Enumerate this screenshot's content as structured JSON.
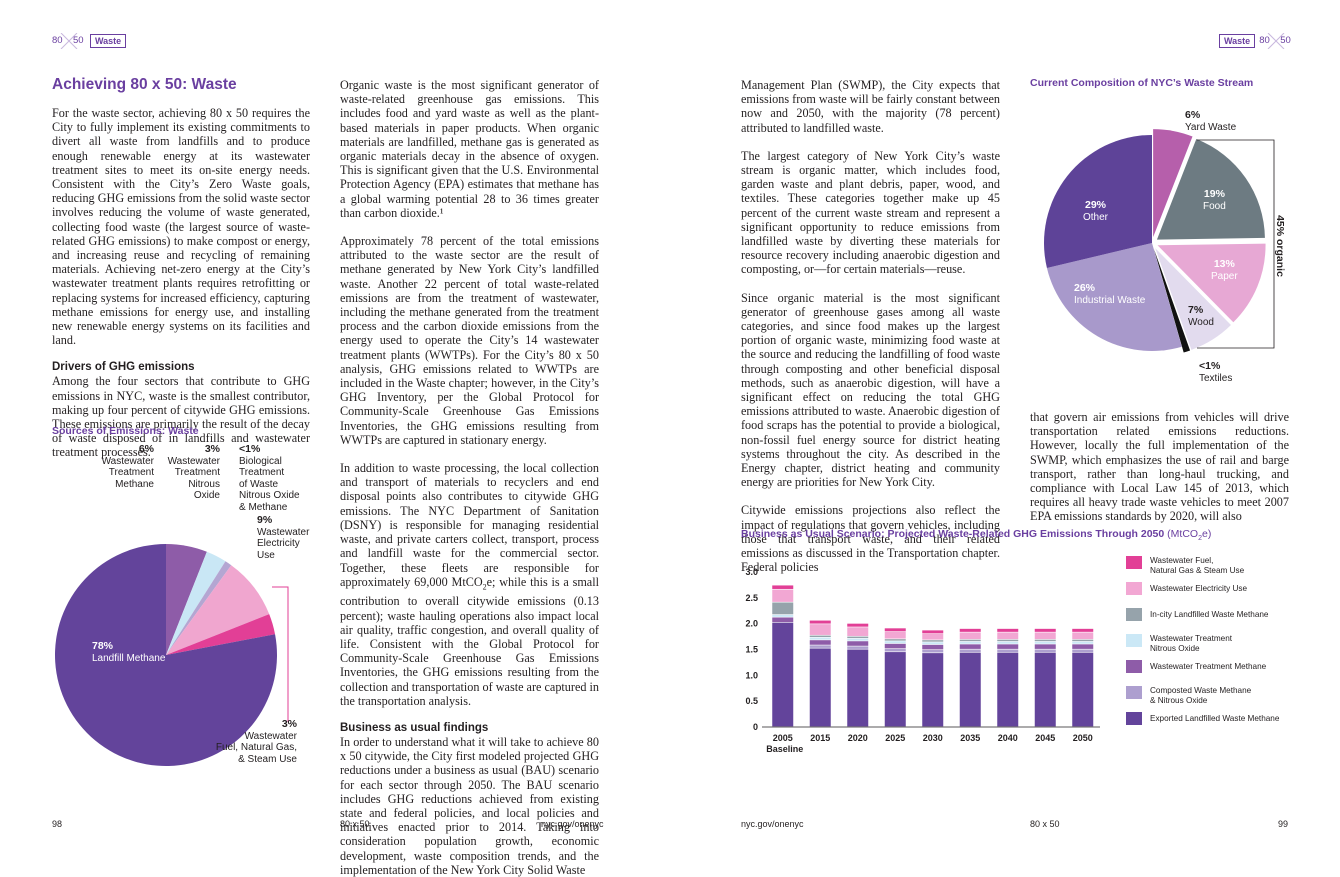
{
  "header": {
    "logo_left_a": "80",
    "logo_left_b": "50",
    "section_tag_left": "Waste",
    "section_tag_right": "Waste",
    "logo_right_a": "80",
    "logo_right_b": "50"
  },
  "left_page": {
    "title": "Achieving 80 x 50: Waste",
    "intro": "For the waste sector, achieving 80 x 50 requires the City to fully implement its existing commitments to divert all waste from landfills and to produce enough renewable energy at its wastewater treatment sites to meet its on-site energy needs. Consistent with the City’s Zero Waste goals, reducing GHG emissions from the solid waste sector involves reducing the volume of waste generated, collecting food waste (the largest source of waste-related GHG emissions) to make compost or energy, and increasing reuse and recycling of remaining materials. Achieving net-zero energy at the City’s wastewater treatment plants requires retrofitting or replacing systems for increased efficiency, capturing methane emissions for energy use, and installing new renewable energy systems on its facilities and land.",
    "drivers_heading": "Drivers of GHG emissions",
    "drivers_text": "Among the four sectors that contribute to GHG emissions in NYC, waste is the smallest contributor, making up four percent of citywide GHG emissions. These emissions are primarily the result of the decay of waste disposed of in landfills and wastewater treatment processes.",
    "col2_p1": "Organic waste is the most significant generator of waste-related greenhouse gas emissions. This includes food and yard waste as well as the plant-based materials in paper products. When organic materials are landfilled, methane gas is generated as organic materials decay in the absence of oxygen. This is significant given that the U.S. Environmental Protection Agency (EPA) estimates that methane has a global warming potential 28 to 36 times greater than carbon dioxide.¹",
    "col2_p2": "Approximately 78 percent of the total emissions attributed to the waste sector are the result of methane generated by New York City’s landfilled waste. Another 22 percent of total waste-related emissions are from the treatment of wastewater, including the methane generated from the treatment process and the carbon dioxide emissions from the energy used to operate the City’s 14 wastewater treatment plants (WWTPs). For the City’s 80 x 50 analysis, GHG emissions related to WWTPs are included in the Waste chapter; however, in the City’s GHG Inventory, per the Global Protocol for Community-Scale Greenhouse Gas Emissions Inventories, the GHG emissions resulting from WWTPs are captured in stationary energy.",
    "col2_p3a": "In addition to waste processing, the local collection and transport of materials to recyclers and end disposal points also contributes to citywide GHG emissions. The NYC Department of Sanitation (DSNY) is responsible for managing residential waste, and private carters collect, transport, process and landfill waste for the commercial sector. Together, these fleets are responsible for approximately 69,000 MtCO",
    "col2_p3_sub": "2",
    "col2_p3b": "e; while this is a small contribution to overall citywide emissions (0.13 percent); waste hauling operations also impact local air quality, traffic congestion, and overall quality of life. Consistent with the Global Protocol for Community-Scale Greenhouse Gas Emissions Inventories, the GHG emissions resulting from the collection and transportation of waste are captured in the transportation analysis.",
    "bau_heading": "Business as usual findings",
    "bau_text": "In order to understand what it will take to achieve 80 x 50 citywide, the City first modeled projected GHG reductions under a business as usual (BAU) scenario for each sector through 2050. The BAU scenario includes GHG reductions achieved from existing state and federal policies, and local policies and initiatives enacted prior to 2014. Taking into consideration population growth, economic development, waste composition trends, and the implementation of the New York City Solid Waste",
    "footer_page": "98",
    "footer_mid": "80 x 50",
    "footer_url": "nyc.gov/onenyc"
  },
  "right_page": {
    "col1_p1": "Management Plan (SWMP), the City expects that emissions from waste will be fairly constant between now and 2050, with the majority (78 percent) attributed to landfilled waste.",
    "col1_p2": "The largest category of New York City’s waste stream is organic matter, which includes food, garden waste and plant debris, paper, wood, and textiles. These categories together make up 45 percent of the current waste stream and represent a significant opportunity to reduce emissions from landfilled waste by diverting these materials for resource recovery including anaerobic digestion and composting, or—for certain materials—reuse.",
    "col1_p3": "Since organic material is the most significant generator of greenhouse gases among all waste categories, and since food makes up the largest portion of organic waste, minimizing food waste at the source and reducing the landfilling of food waste through composting and other beneficial disposal methods, such as anaerobic digestion, will have a significant effect on reducing the total GHG emissions attributed to waste. Anaerobic digestion of food scraps has the potential to provide a biological, non-fossil fuel energy source for district heating systems throughout the city. As described in the Energy chapter, district heating and community energy are priorities for New York City.",
    "col1_p4": "Citywide emissions projections also reflect the impact of regulations that govern vehicles, including those that transport waste, and their related emissions as discussed in the Transportation chapter. Federal policies",
    "col2_p1": "that govern air emissions from vehicles will drive transportation related emissions reductions. However, locally the full implementation of the SWMP, which emphasizes the use of rail and barge transport, rather than long-haul trucking, and compliance with Local Law 145 of 2013, which requires all heavy trade waste vehicles to meet 2007 EPA emissions standards by 2020, will also",
    "footer_url": "nyc.gov/onenyc",
    "footer_mid": "80 x 50",
    "footer_page": "99"
  },
  "chart_data": [
    {
      "type": "pie",
      "title": "Sources of Emissions: Waste",
      "slices": [
        {
          "name": "Wastewater Treatment Methane",
          "value": 6,
          "label": "6%",
          "color": "#8e5ca8"
        },
        {
          "name": "Wastewater Treatment Nitrous Oxide",
          "value": 3,
          "label": "3%",
          "color": "#c9e7f5"
        },
        {
          "name": "Biological Treatment of Waste Nitrous Oxide & Methane",
          "value": 1,
          "label": "<1%",
          "color": "#b4a6d2"
        },
        {
          "name": "Wastewater Electricity Use",
          "value": 9,
          "label": "9%",
          "color": "#f0a6cf"
        },
        {
          "name": "Wastewater Fuel, Natural Gas, & Steam Use",
          "value": 3,
          "label": "3%",
          "color": "#e23f96"
        },
        {
          "name": "Landfill Methane",
          "value": 78,
          "label": "78%",
          "color": "#63449b"
        }
      ],
      "labels": {
        "ww_methane": [
          "6%",
          "Wastewater",
          "Treatment",
          "Methane"
        ],
        "ww_n2o": [
          "3%",
          "Wastewater",
          "Treatment",
          "Nitrous",
          "Oxide"
        ],
        "bio": [
          "<1%",
          "Biological",
          "Treatment",
          "of Waste",
          "Nitrous Oxide",
          "& Methane"
        ],
        "elec": [
          "9%",
          "Wastewater",
          "Electricity",
          "Use"
        ],
        "fuel": [
          "3%",
          "Wastewater",
          "Fuel, Natural Gas,",
          "& Steam Use"
        ],
        "landfill": [
          "78%",
          "Landfill Methane"
        ]
      }
    },
    {
      "type": "pie",
      "title": "Current Composition of NYC’s Waste Stream",
      "slices": [
        {
          "name": "Yard Waste",
          "value": 6,
          "label": "6%",
          "color": "#b65fab"
        },
        {
          "name": "Food",
          "value": 19,
          "label": "19%",
          "color": "#6d7b82"
        },
        {
          "name": "Paper",
          "value": 13,
          "label": "13%",
          "color": "#e7a8d4"
        },
        {
          "name": "Wood",
          "value": 7,
          "label": "7%",
          "color": "#e2dbee"
        },
        {
          "name": "Textiles",
          "value": 1,
          "label": "<1%",
          "color": "#111111"
        },
        {
          "name": "Industrial Waste",
          "value": 26,
          "label": "26%",
          "color": "#a899cb"
        },
        {
          "name": "Other",
          "value": 29,
          "label": "29%",
          "color": "#5e4398"
        }
      ],
      "bracket_label": "45% organic",
      "labels": {
        "yard": [
          "6%",
          "Yard Waste"
        ],
        "food": [
          "19%",
          "Food"
        ],
        "paper": [
          "13%",
          "Paper"
        ],
        "wood": [
          "7%",
          "Wood"
        ],
        "textiles": [
          "<1%",
          "Textiles"
        ],
        "industrial": [
          "26%",
          "Industrial Waste"
        ],
        "other": [
          "29%",
          "Other"
        ]
      }
    },
    {
      "type": "bar",
      "stacked": true,
      "title_main": "Business as Usual Scenario: Projected Waste-Related GHG Emissions Through 2050 ",
      "title_unit_a": "(MtCO",
      "title_unit_sub": "2",
      "title_unit_b": "e)",
      "categories": [
        "2005",
        "2015",
        "2020",
        "2025",
        "2030",
        "2035",
        "2040",
        "2045",
        "2050"
      ],
      "category_sublabels": [
        "Baseline",
        "",
        "",
        "",
        "",
        "",
        "",
        "",
        ""
      ],
      "ylim": [
        0,
        3.0
      ],
      "yticks": [
        "0",
        "0.5",
        "1.0",
        "1.5",
        "2.0",
        "2.5",
        "3.0"
      ],
      "series": [
        {
          "name": "Exported Landfilled Waste Methane",
          "color": "#63449b",
          "values": [
            2.02,
            1.52,
            1.5,
            1.45,
            1.43,
            1.44,
            1.44,
            1.44,
            1.44
          ]
        },
        {
          "name": "Composted Waste Methane & Nitrous Oxide",
          "color": "#ad9fcf",
          "values": [
            0.0,
            0.06,
            0.06,
            0.06,
            0.06,
            0.06,
            0.06,
            0.06,
            0.06
          ]
        },
        {
          "name": "Wastewater Treatment Methane",
          "color": "#8e5ca8",
          "values": [
            0.1,
            0.1,
            0.1,
            0.1,
            0.1,
            0.1,
            0.1,
            0.1,
            0.1
          ]
        },
        {
          "name": "Wastewater Treatment Nitrous Oxide",
          "color": "#cbe8f6",
          "values": [
            0.05,
            0.05,
            0.05,
            0.05,
            0.05,
            0.05,
            0.05,
            0.05,
            0.05
          ]
        },
        {
          "name": "In-city Landfilled Waste Methane",
          "color": "#96a3ab",
          "values": [
            0.24,
            0.04,
            0.04,
            0.04,
            0.04,
            0.04,
            0.04,
            0.04,
            0.04
          ]
        },
        {
          "name": "Wastewater Electricity Use",
          "color": "#f2a7d3",
          "values": [
            0.25,
            0.22,
            0.18,
            0.14,
            0.12,
            0.14,
            0.14,
            0.14,
            0.14
          ]
        },
        {
          "name": "Wastewater Fuel, Natural Gas & Steam Use",
          "color": "#e23f96",
          "values": [
            0.08,
            0.07,
            0.07,
            0.07,
            0.07,
            0.07,
            0.07,
            0.07,
            0.07
          ]
        }
      ],
      "legend": [
        {
          "label_a": "Wastewater Fuel,",
          "label_b": "Natural Gas & Steam Use",
          "color": "#e23f96"
        },
        {
          "label_a": "Wastewater Electricity Use",
          "label_b": "",
          "color": "#f2a7d3"
        },
        {
          "label_a": "In-city Landfilled Waste Methane",
          "label_b": "",
          "color": "#96a3ab"
        },
        {
          "label_a": "Wastewater Treatment",
          "label_b": "Nitrous Oxide",
          "color": "#cbe8f6"
        },
        {
          "label_a": "Wastewater Treatment Methane",
          "label_b": "",
          "color": "#8e5ca8"
        },
        {
          "label_a": "Composted Waste Methane",
          "label_b": "& Nitrous Oxide",
          "color": "#ad9fcf"
        },
        {
          "label_a": "Exported Landfilled Waste Methane",
          "label_b": "",
          "color": "#63449b"
        }
      ]
    }
  ]
}
